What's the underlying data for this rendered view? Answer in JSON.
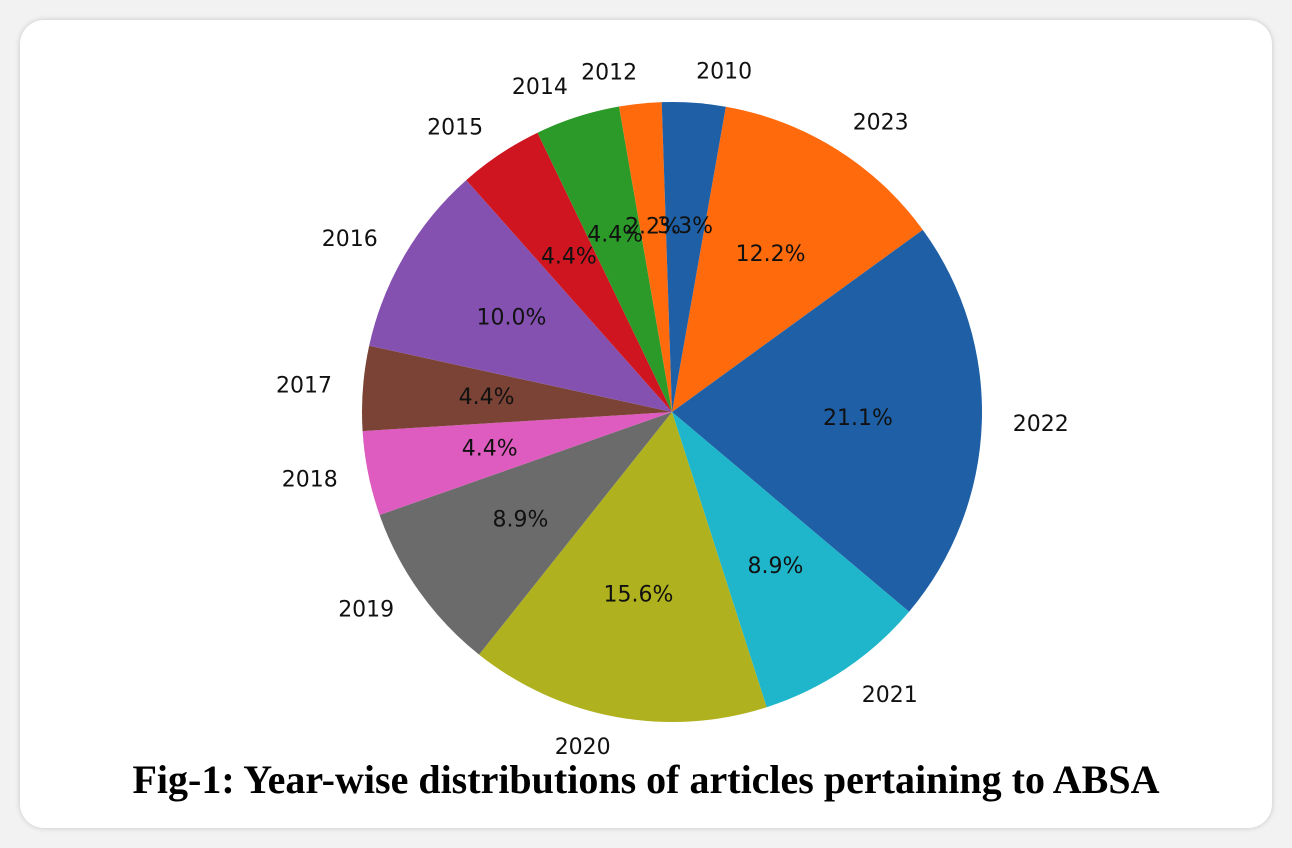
{
  "chart_data": {
    "type": "pie",
    "title": "Fig-1: Year-wise distributions of articles pertaining to ABSA",
    "slices": [
      {
        "label": "2023",
        "value": 12.2,
        "pct_label": "12.2%",
        "color": "#ff6a0d"
      },
      {
        "label": "2022",
        "value": 21.1,
        "pct_label": "21.1%",
        "color": "#1f5fa6"
      },
      {
        "label": "2021",
        "value": 8.9,
        "pct_label": "8.9%",
        "color": "#1fb6cb"
      },
      {
        "label": "2020",
        "value": 15.6,
        "pct_label": "15.6%",
        "color": "#afb11e"
      },
      {
        "label": "2019",
        "value": 8.9,
        "pct_label": "8.9%",
        "color": "#6b6b6b"
      },
      {
        "label": "2018",
        "value": 4.4,
        "pct_label": "4.4%",
        "color": "#de5bbf"
      },
      {
        "label": "2017",
        "value": 4.4,
        "pct_label": "4.4%",
        "color": "#7a4336"
      },
      {
        "label": "2016",
        "value": 10.0,
        "pct_label": "10.0%",
        "color": "#8451b0"
      },
      {
        "label": "2015",
        "value": 4.4,
        "pct_label": "4.4%",
        "color": "#cf1620"
      },
      {
        "label": "2014",
        "value": 4.4,
        "pct_label": "4.4%",
        "color": "#2b9a28"
      },
      {
        "label": "2012",
        "value": 2.2,
        "pct_label": "2.2%",
        "color": "#ff6a0d"
      },
      {
        "label": "2010",
        "value": 3.3,
        "pct_label": "3.3%",
        "color": "#1f5fa6"
      }
    ],
    "start_angle_deg": 80,
    "direction": "clockwise"
  }
}
